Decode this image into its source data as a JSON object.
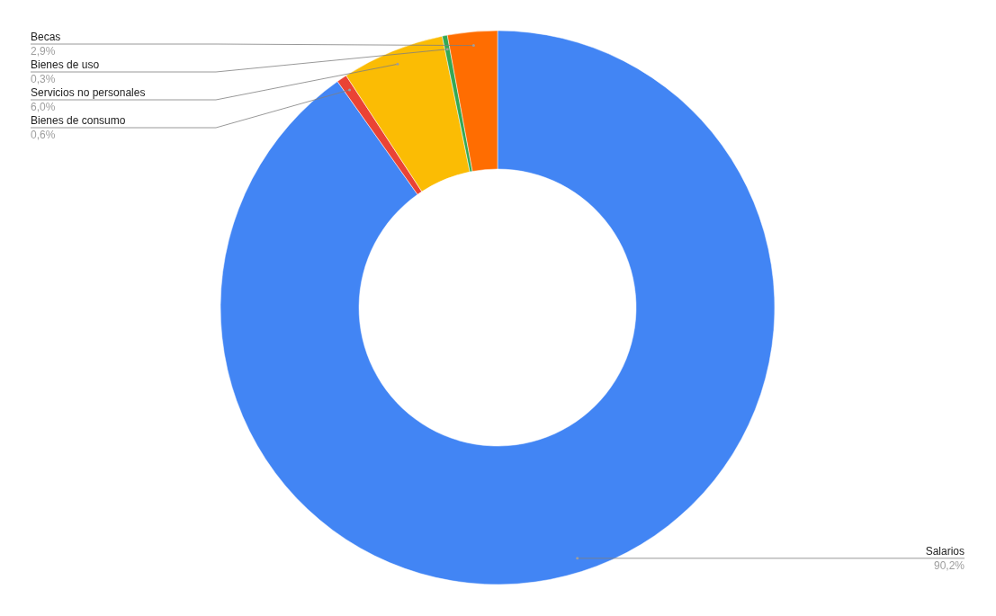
{
  "chart_data": {
    "type": "donut",
    "categories": [
      "Salarios",
      "Bienes de consumo",
      "Servicios no personales",
      "Bienes de uso",
      "Becas"
    ],
    "values": [
      90.2,
      0.6,
      6.0,
      0.3,
      2.9
    ],
    "value_labels": [
      "90,2%",
      "0,6%",
      "6,0%",
      "0,3%",
      "2,9%"
    ],
    "colors": [
      "#4285f4",
      "#ea4335",
      "#fbbc04",
      "#34a853",
      "#ff6d01"
    ]
  }
}
